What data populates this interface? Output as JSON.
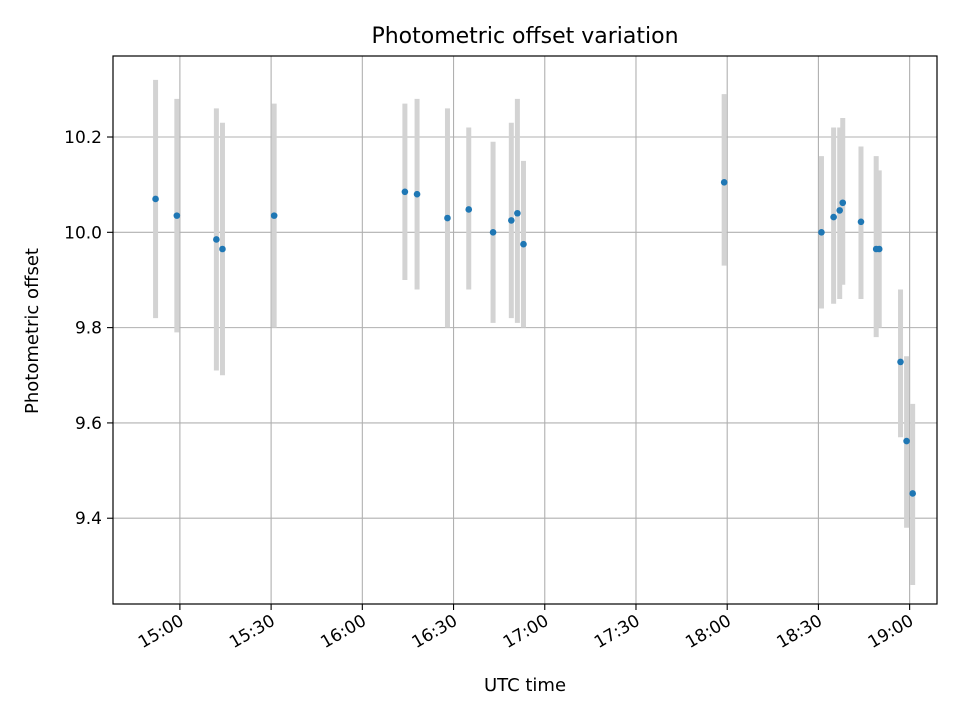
{
  "chart_data": {
    "type": "scatter",
    "title": "Photometric offset variation",
    "xlabel": "UTC time",
    "ylabel": "Photometric offset",
    "x_axis_kind": "time",
    "x_unit": "HH:MM UTC",
    "xlim": [
      "14:38",
      "19:09"
    ],
    "ylim": [
      9.22,
      10.37
    ],
    "x_ticks": [
      "15:00",
      "15:30",
      "16:00",
      "16:30",
      "17:00",
      "17:30",
      "18:00",
      "18:30",
      "19:00"
    ],
    "y_ticks": [
      {
        "value": 9.4,
        "label": "9.4"
      },
      {
        "value": 9.6,
        "label": "9.6"
      },
      {
        "value": 9.8,
        "label": "9.8"
      },
      {
        "value": 10.0,
        "label": "10.0"
      },
      {
        "value": 10.2,
        "label": "10.2"
      }
    ],
    "grid": true,
    "x_tick_rotation_deg": 30,
    "colors": {
      "marker": "#1f77b4",
      "errorbar": "#d3d3d3",
      "grid": "#b0b0b0",
      "frame": "#000000"
    },
    "points": [
      {
        "x": "14:52",
        "y": 10.07,
        "low": 9.82,
        "high": 10.32
      },
      {
        "x": "14:59",
        "y": 10.035,
        "low": 9.79,
        "high": 10.28
      },
      {
        "x": "15:12",
        "y": 9.985,
        "low": 9.71,
        "high": 10.26
      },
      {
        "x": "15:14",
        "y": 9.965,
        "low": 9.7,
        "high": 10.23
      },
      {
        "x": "15:31",
        "y": 10.035,
        "low": 9.8,
        "high": 10.27
      },
      {
        "x": "16:14",
        "y": 10.085,
        "low": 9.9,
        "high": 10.27
      },
      {
        "x": "16:18",
        "y": 10.08,
        "low": 9.88,
        "high": 10.28
      },
      {
        "x": "16:28",
        "y": 10.03,
        "low": 9.8,
        "high": 10.26
      },
      {
        "x": "16:35",
        "y": 10.048,
        "low": 9.88,
        "high": 10.22
      },
      {
        "x": "16:43",
        "y": 10.0,
        "low": 9.81,
        "high": 10.19
      },
      {
        "x": "16:49",
        "y": 10.025,
        "low": 9.82,
        "high": 10.23
      },
      {
        "x": "16:51",
        "y": 10.04,
        "low": 9.81,
        "high": 10.28
      },
      {
        "x": "16:53",
        "y": 9.975,
        "low": 9.8,
        "high": 10.15
      },
      {
        "x": "17:59",
        "y": 10.105,
        "low": 9.93,
        "high": 10.29
      },
      {
        "x": "18:31",
        "y": 10.0,
        "low": 9.84,
        "high": 10.16
      },
      {
        "x": "18:35",
        "y": 10.032,
        "low": 9.85,
        "high": 10.22
      },
      {
        "x": "18:37",
        "y": 10.046,
        "low": 9.86,
        "high": 10.22
      },
      {
        "x": "18:38",
        "y": 10.062,
        "low": 9.89,
        "high": 10.24
      },
      {
        "x": "18:44",
        "y": 10.022,
        "low": 9.86,
        "high": 10.18
      },
      {
        "x": "18:49",
        "y": 9.965,
        "low": 9.78,
        "high": 10.16
      },
      {
        "x": "18:50",
        "y": 9.965,
        "low": 9.8,
        "high": 10.13
      },
      {
        "x": "18:57",
        "y": 9.728,
        "low": 9.57,
        "high": 9.88
      },
      {
        "x": "18:59",
        "y": 9.562,
        "low": 9.38,
        "high": 9.74
      },
      {
        "x": "19:01",
        "y": 9.452,
        "low": 9.26,
        "high": 9.64
      }
    ]
  }
}
